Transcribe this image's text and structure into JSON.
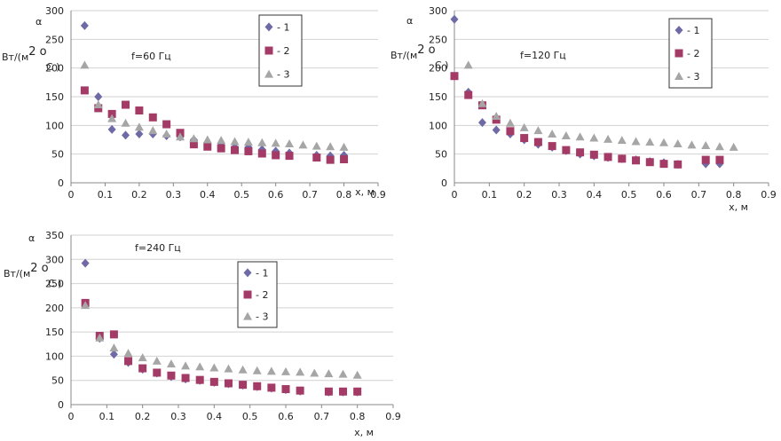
{
  "colors": {
    "s1": "#6e6aa6",
    "s2": "#a43a66",
    "s3": "#a6a6a6"
  },
  "markers": {
    "s1": "diamond",
    "s2": "square",
    "s3": "triangle"
  },
  "chart_data": [
    {
      "type": "scatter",
      "title": "f=60 Гц",
      "ylabel_top": "α",
      "ylabel_unit": "Вт/(м",
      "ylabel_sup": "2 о",
      "ylabel_tail": "С )",
      "xlabel": "х, м",
      "xlim": [
        0,
        0.9
      ],
      "ylim": [
        0,
        300
      ],
      "xticks": [
        "0",
        "0.1",
        "0.2",
        "0.3",
        "0.4",
        "0.5",
        "0.6",
        "0.7",
        "0.8",
        "0.9"
      ],
      "yticks": [
        "0",
        "50",
        "100",
        "150",
        "200",
        "250",
        "300"
      ],
      "grid": true,
      "legend": [
        "- 1",
        "- 2",
        "- 3"
      ],
      "series": [
        {
          "name": "- 1",
          "x": [
            0.04,
            0.08,
            0.12,
            0.16,
            0.2,
            0.24,
            0.28,
            0.32,
            0.36,
            0.4,
            0.44,
            0.48,
            0.52,
            0.56,
            0.6,
            0.64,
            0.72,
            0.76,
            0.8
          ],
          "y": [
            274,
            150,
            93,
            83,
            85,
            85,
            82,
            80,
            75,
            70,
            66,
            62,
            62,
            58,
            55,
            52,
            48,
            47,
            48
          ]
        },
        {
          "name": "- 2",
          "x": [
            0.04,
            0.08,
            0.12,
            0.16,
            0.2,
            0.24,
            0.28,
            0.32,
            0.36,
            0.4,
            0.44,
            0.48,
            0.52,
            0.56,
            0.6,
            0.64,
            0.72,
            0.76,
            0.8
          ],
          "y": [
            161,
            130,
            120,
            136,
            126,
            114,
            102,
            87,
            67,
            63,
            60,
            57,
            55,
            51,
            48,
            47,
            44,
            40,
            41
          ]
        },
        {
          "name": "- 3",
          "x": [
            0.04,
            0.08,
            0.12,
            0.16,
            0.2,
            0.24,
            0.28,
            0.32,
            0.36,
            0.4,
            0.44,
            0.48,
            0.52,
            0.56,
            0.6,
            0.64,
            0.68,
            0.72,
            0.76,
            0.8
          ],
          "y": [
            205,
            136,
            112,
            104,
            97,
            91,
            85,
            80,
            77,
            75,
            74,
            72,
            71,
            70,
            69,
            68,
            66,
            64,
            63,
            62
          ]
        }
      ]
    },
    {
      "type": "scatter",
      "title": "f=120 Гц",
      "ylabel_top": "α",
      "ylabel_unit": "Вт/(м",
      "ylabel_sup": "2 о",
      "ylabel_tail": "С )",
      "xlabel": "х, м",
      "xlim": [
        0,
        0.9
      ],
      "ylim": [
        0,
        300
      ],
      "xticks": [
        "0",
        "0.1",
        "0.2",
        "0.3",
        "0.4",
        "0.5",
        "0.6",
        "0.7",
        "0.8",
        "0.9"
      ],
      "yticks": [
        "0",
        "50",
        "100",
        "150",
        "200",
        "250",
        "300"
      ],
      "grid": true,
      "legend": [
        "- 1",
        "- 2",
        "- 3"
      ],
      "series": [
        {
          "name": "- 1",
          "x": [
            0,
            0.04,
            0.08,
            0.12,
            0.16,
            0.2,
            0.24,
            0.28,
            0.32,
            0.36,
            0.4,
            0.44,
            0.48,
            0.52,
            0.56,
            0.6,
            0.64,
            0.72,
            0.76
          ],
          "y": [
            285,
            158,
            105,
            92,
            85,
            75,
            67,
            62,
            56,
            50,
            47,
            44,
            42,
            40,
            37,
            35,
            32,
            33,
            33
          ]
        },
        {
          "name": "- 2",
          "x": [
            0,
            0.04,
            0.08,
            0.12,
            0.16,
            0.2,
            0.24,
            0.28,
            0.32,
            0.36,
            0.4,
            0.44,
            0.48,
            0.52,
            0.56,
            0.6,
            0.64,
            0.72,
            0.76
          ],
          "y": [
            186,
            153,
            135,
            110,
            90,
            78,
            71,
            64,
            57,
            53,
            49,
            45,
            42,
            39,
            36,
            33,
            32,
            40,
            40
          ]
        },
        {
          "name": "- 3",
          "x": [
            0.04,
            0.08,
            0.12,
            0.16,
            0.2,
            0.24,
            0.28,
            0.32,
            0.36,
            0.4,
            0.44,
            0.48,
            0.52,
            0.56,
            0.6,
            0.64,
            0.68,
            0.72,
            0.76,
            0.8
          ],
          "y": [
            205,
            138,
            116,
            104,
            96,
            91,
            85,
            82,
            80,
            78,
            76,
            74,
            72,
            71,
            70,
            68,
            66,
            65,
            63,
            62
          ]
        }
      ]
    },
    {
      "type": "scatter",
      "title": "f=240 Гц",
      "ylabel_top": "α",
      "ylabel_unit": "Вт/(м",
      "ylabel_sup": "2 о",
      "ylabel_tail": "С )",
      "xlabel": "х, м",
      "xlim": [
        0,
        0.9
      ],
      "ylim": [
        0,
        350
      ],
      "xticks": [
        "0",
        "0.1",
        "0.2",
        "0.3",
        "0.4",
        "0.5",
        "0.6",
        "0.7",
        "0.8",
        "0.9"
      ],
      "yticks": [
        "0",
        "50",
        "100",
        "150",
        "200",
        "250",
        "300",
        "350"
      ],
      "grid": true,
      "legend": [
        "- 1",
        "- 2",
        "- 3"
      ],
      "series": [
        {
          "name": "- 1",
          "x": [
            0.04,
            0.08,
            0.12,
            0.16,
            0.2,
            0.24,
            0.28,
            0.32,
            0.36,
            0.4,
            0.44,
            0.48,
            0.52,
            0.56,
            0.6,
            0.64,
            0.72,
            0.76,
            0.8
          ],
          "y": [
            292,
            137,
            104,
            87,
            73,
            65,
            58,
            53,
            50,
            46,
            43,
            40,
            37,
            34,
            31,
            28,
            26,
            26,
            26
          ]
        },
        {
          "name": "- 2",
          "x": [
            0.04,
            0.08,
            0.12,
            0.16,
            0.2,
            0.24,
            0.28,
            0.32,
            0.36,
            0.4,
            0.44,
            0.48,
            0.52,
            0.56,
            0.6,
            0.64,
            0.72,
            0.76,
            0.8
          ],
          "y": [
            210,
            142,
            145,
            90,
            75,
            66,
            60,
            55,
            51,
            47,
            44,
            41,
            38,
            35,
            32,
            29,
            27,
            27,
            27
          ]
        },
        {
          "name": "- 3",
          "x": [
            0.04,
            0.08,
            0.12,
            0.16,
            0.2,
            0.24,
            0.28,
            0.32,
            0.36,
            0.4,
            0.44,
            0.48,
            0.52,
            0.56,
            0.6,
            0.64,
            0.68,
            0.72,
            0.76,
            0.8
          ],
          "y": [
            205,
            138,
            117,
            106,
            97,
            90,
            84,
            80,
            78,
            76,
            74,
            72,
            70,
            69,
            68,
            67,
            65,
            64,
            63,
            61
          ]
        }
      ]
    }
  ]
}
